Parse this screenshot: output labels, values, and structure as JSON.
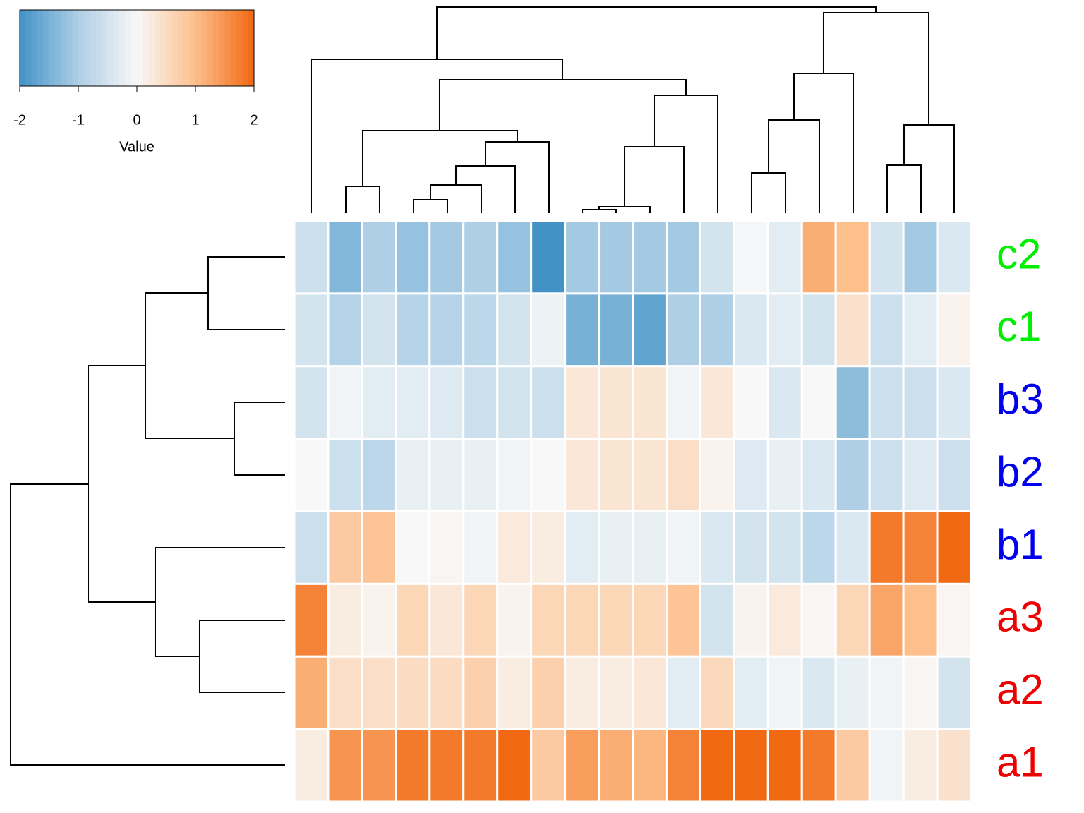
{
  "chart_data": {
    "type": "heatmap",
    "rows": [
      "c2",
      "c1",
      "b3",
      "b2",
      "b1",
      "a3",
      "a2",
      "a1"
    ],
    "row_colors": [
      "#00ee00",
      "#00ee00",
      "#0000ee",
      "#0000ee",
      "#0000ee",
      "#ee0000",
      "#ee0000",
      "#ee0000"
    ],
    "values": [
      [
        -0.6,
        -1.4,
        -1.0,
        -1.2,
        -1.1,
        -1.0,
        -1.2,
        -2.0,
        -1.1,
        -1.1,
        -1.1,
        -1.1,
        -0.5,
        -0.05,
        -0.3,
        1.2,
        1.0,
        -0.5,
        -1.1,
        -0.4
      ],
      [
        -0.5,
        -0.9,
        -0.5,
        -0.9,
        -0.9,
        -0.8,
        -0.5,
        -0.15,
        -1.5,
        -1.5,
        -1.7,
        -1.0,
        -1.0,
        -0.4,
        -0.3,
        -0.5,
        0.4,
        -0.6,
        -0.3,
        0.1
      ],
      [
        -0.5,
        -0.1,
        -0.3,
        -0.3,
        -0.35,
        -0.6,
        -0.5,
        -0.6,
        0.3,
        0.35,
        0.35,
        -0.1,
        0.3,
        0.0,
        -0.4,
        0.0,
        -1.3,
        -0.6,
        -0.6,
        -0.4
      ],
      [
        0.0,
        -0.6,
        -0.8,
        -0.2,
        -0.2,
        -0.2,
        -0.1,
        0.0,
        0.3,
        0.35,
        0.35,
        0.45,
        0.1,
        -0.35,
        -0.2,
        -0.4,
        -1.0,
        -0.6,
        -0.35,
        -0.6
      ],
      [
        -0.6,
        0.8,
        0.9,
        0.0,
        0.05,
        -0.1,
        0.25,
        0.2,
        -0.3,
        -0.2,
        -0.2,
        -0.1,
        -0.4,
        -0.5,
        -0.5,
        -0.8,
        -0.4,
        1.8,
        1.7,
        2.0
      ],
      [
        1.7,
        0.2,
        0.1,
        0.6,
        0.3,
        0.6,
        0.1,
        0.6,
        0.6,
        0.6,
        0.6,
        0.9,
        -0.5,
        0.1,
        0.25,
        0.05,
        0.6,
        1.3,
        1.0,
        0.05
      ],
      [
        1.2,
        0.45,
        0.45,
        0.5,
        0.5,
        0.7,
        0.2,
        0.7,
        0.2,
        0.2,
        0.3,
        -0.3,
        0.55,
        -0.3,
        -0.1,
        -0.4,
        -0.2,
        -0.1,
        0.05,
        -0.5
      ],
      [
        0.2,
        1.5,
        1.5,
        1.8,
        1.8,
        1.8,
        2.0,
        0.8,
        1.4,
        1.2,
        1.1,
        1.7,
        2.0,
        2.0,
        2.0,
        1.8,
        0.8,
        -0.1,
        0.2,
        0.4
      ]
    ],
    "colorbar": {
      "title": "Value",
      "lim": [
        -2,
        2
      ],
      "ticks": [
        -2,
        -1,
        0,
        1,
        2
      ],
      "colors": [
        "#4292c6",
        "#aecfe6",
        "#f8f8f8",
        "#fdbf8c",
        "#f16913"
      ]
    }
  }
}
